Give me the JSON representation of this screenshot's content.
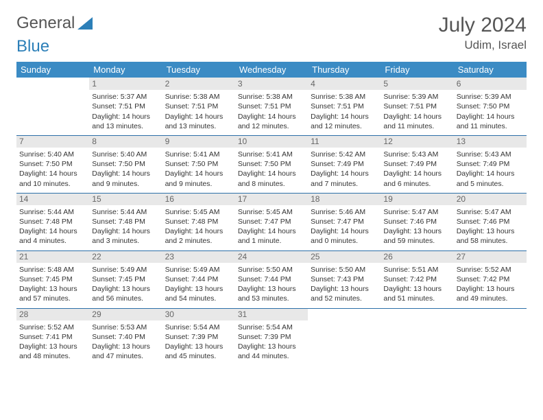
{
  "logo": {
    "part1": "General",
    "part2": "Blue"
  },
  "title": "July 2024",
  "location": "Udim, Israel",
  "colors": {
    "header_bg": "#3b8bc4",
    "header_text": "#ffffff",
    "daynum_bg": "#e8e8e8",
    "daynum_text": "#666666",
    "sep_line": "#2c6fa8",
    "logo_gray": "#555555",
    "logo_blue": "#2c7fb8"
  },
  "weekdays": [
    "Sunday",
    "Monday",
    "Tuesday",
    "Wednesday",
    "Thursday",
    "Friday",
    "Saturday"
  ],
  "weeks": [
    [
      {
        "n": "",
        "sr": "",
        "ss": "",
        "dl1": "",
        "dl2": ""
      },
      {
        "n": "1",
        "sr": "Sunrise: 5:37 AM",
        "ss": "Sunset: 7:51 PM",
        "dl1": "Daylight: 14 hours",
        "dl2": "and 13 minutes."
      },
      {
        "n": "2",
        "sr": "Sunrise: 5:38 AM",
        "ss": "Sunset: 7:51 PM",
        "dl1": "Daylight: 14 hours",
        "dl2": "and 13 minutes."
      },
      {
        "n": "3",
        "sr": "Sunrise: 5:38 AM",
        "ss": "Sunset: 7:51 PM",
        "dl1": "Daylight: 14 hours",
        "dl2": "and 12 minutes."
      },
      {
        "n": "4",
        "sr": "Sunrise: 5:38 AM",
        "ss": "Sunset: 7:51 PM",
        "dl1": "Daylight: 14 hours",
        "dl2": "and 12 minutes."
      },
      {
        "n": "5",
        "sr": "Sunrise: 5:39 AM",
        "ss": "Sunset: 7:51 PM",
        "dl1": "Daylight: 14 hours",
        "dl2": "and 11 minutes."
      },
      {
        "n": "6",
        "sr": "Sunrise: 5:39 AM",
        "ss": "Sunset: 7:50 PM",
        "dl1": "Daylight: 14 hours",
        "dl2": "and 11 minutes."
      }
    ],
    [
      {
        "n": "7",
        "sr": "Sunrise: 5:40 AM",
        "ss": "Sunset: 7:50 PM",
        "dl1": "Daylight: 14 hours",
        "dl2": "and 10 minutes."
      },
      {
        "n": "8",
        "sr": "Sunrise: 5:40 AM",
        "ss": "Sunset: 7:50 PM",
        "dl1": "Daylight: 14 hours",
        "dl2": "and 9 minutes."
      },
      {
        "n": "9",
        "sr": "Sunrise: 5:41 AM",
        "ss": "Sunset: 7:50 PM",
        "dl1": "Daylight: 14 hours",
        "dl2": "and 9 minutes."
      },
      {
        "n": "10",
        "sr": "Sunrise: 5:41 AM",
        "ss": "Sunset: 7:50 PM",
        "dl1": "Daylight: 14 hours",
        "dl2": "and 8 minutes."
      },
      {
        "n": "11",
        "sr": "Sunrise: 5:42 AM",
        "ss": "Sunset: 7:49 PM",
        "dl1": "Daylight: 14 hours",
        "dl2": "and 7 minutes."
      },
      {
        "n": "12",
        "sr": "Sunrise: 5:43 AM",
        "ss": "Sunset: 7:49 PM",
        "dl1": "Daylight: 14 hours",
        "dl2": "and 6 minutes."
      },
      {
        "n": "13",
        "sr": "Sunrise: 5:43 AM",
        "ss": "Sunset: 7:49 PM",
        "dl1": "Daylight: 14 hours",
        "dl2": "and 5 minutes."
      }
    ],
    [
      {
        "n": "14",
        "sr": "Sunrise: 5:44 AM",
        "ss": "Sunset: 7:48 PM",
        "dl1": "Daylight: 14 hours",
        "dl2": "and 4 minutes."
      },
      {
        "n": "15",
        "sr": "Sunrise: 5:44 AM",
        "ss": "Sunset: 7:48 PM",
        "dl1": "Daylight: 14 hours",
        "dl2": "and 3 minutes."
      },
      {
        "n": "16",
        "sr": "Sunrise: 5:45 AM",
        "ss": "Sunset: 7:48 PM",
        "dl1": "Daylight: 14 hours",
        "dl2": "and 2 minutes."
      },
      {
        "n": "17",
        "sr": "Sunrise: 5:45 AM",
        "ss": "Sunset: 7:47 PM",
        "dl1": "Daylight: 14 hours",
        "dl2": "and 1 minute."
      },
      {
        "n": "18",
        "sr": "Sunrise: 5:46 AM",
        "ss": "Sunset: 7:47 PM",
        "dl1": "Daylight: 14 hours",
        "dl2": "and 0 minutes."
      },
      {
        "n": "19",
        "sr": "Sunrise: 5:47 AM",
        "ss": "Sunset: 7:46 PM",
        "dl1": "Daylight: 13 hours",
        "dl2": "and 59 minutes."
      },
      {
        "n": "20",
        "sr": "Sunrise: 5:47 AM",
        "ss": "Sunset: 7:46 PM",
        "dl1": "Daylight: 13 hours",
        "dl2": "and 58 minutes."
      }
    ],
    [
      {
        "n": "21",
        "sr": "Sunrise: 5:48 AM",
        "ss": "Sunset: 7:45 PM",
        "dl1": "Daylight: 13 hours",
        "dl2": "and 57 minutes."
      },
      {
        "n": "22",
        "sr": "Sunrise: 5:49 AM",
        "ss": "Sunset: 7:45 PM",
        "dl1": "Daylight: 13 hours",
        "dl2": "and 56 minutes."
      },
      {
        "n": "23",
        "sr": "Sunrise: 5:49 AM",
        "ss": "Sunset: 7:44 PM",
        "dl1": "Daylight: 13 hours",
        "dl2": "and 54 minutes."
      },
      {
        "n": "24",
        "sr": "Sunrise: 5:50 AM",
        "ss": "Sunset: 7:44 PM",
        "dl1": "Daylight: 13 hours",
        "dl2": "and 53 minutes."
      },
      {
        "n": "25",
        "sr": "Sunrise: 5:50 AM",
        "ss": "Sunset: 7:43 PM",
        "dl1": "Daylight: 13 hours",
        "dl2": "and 52 minutes."
      },
      {
        "n": "26",
        "sr": "Sunrise: 5:51 AM",
        "ss": "Sunset: 7:42 PM",
        "dl1": "Daylight: 13 hours",
        "dl2": "and 51 minutes."
      },
      {
        "n": "27",
        "sr": "Sunrise: 5:52 AM",
        "ss": "Sunset: 7:42 PM",
        "dl1": "Daylight: 13 hours",
        "dl2": "and 49 minutes."
      }
    ],
    [
      {
        "n": "28",
        "sr": "Sunrise: 5:52 AM",
        "ss": "Sunset: 7:41 PM",
        "dl1": "Daylight: 13 hours",
        "dl2": "and 48 minutes."
      },
      {
        "n": "29",
        "sr": "Sunrise: 5:53 AM",
        "ss": "Sunset: 7:40 PM",
        "dl1": "Daylight: 13 hours",
        "dl2": "and 47 minutes."
      },
      {
        "n": "30",
        "sr": "Sunrise: 5:54 AM",
        "ss": "Sunset: 7:39 PM",
        "dl1": "Daylight: 13 hours",
        "dl2": "and 45 minutes."
      },
      {
        "n": "31",
        "sr": "Sunrise: 5:54 AM",
        "ss": "Sunset: 7:39 PM",
        "dl1": "Daylight: 13 hours",
        "dl2": "and 44 minutes."
      },
      {
        "n": "",
        "sr": "",
        "ss": "",
        "dl1": "",
        "dl2": ""
      },
      {
        "n": "",
        "sr": "",
        "ss": "",
        "dl1": "",
        "dl2": ""
      },
      {
        "n": "",
        "sr": "",
        "ss": "",
        "dl1": "",
        "dl2": ""
      }
    ]
  ]
}
